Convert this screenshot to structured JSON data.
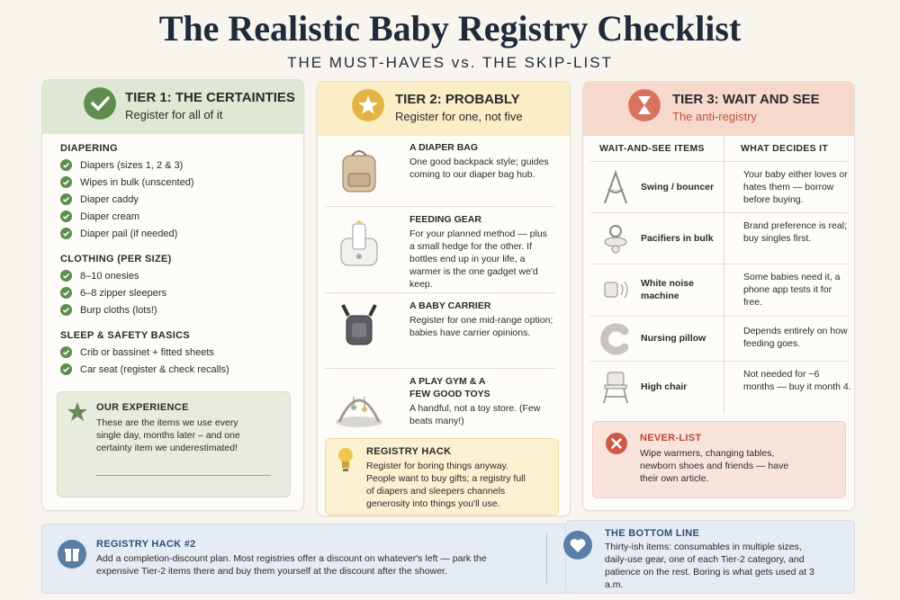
{
  "header": {
    "title": "The Realistic Baby Registry Checklist",
    "subtitle": "THE MUST-HAVES vs. THE SKIP-LIST"
  },
  "tier1": {
    "title": "TIER 1: THE CERTAINTIES",
    "subtitle": "Register for all of it",
    "sections": [
      {
        "heading": "DIAPERING",
        "items": [
          "Diapers (sizes 1, 2 & 3)",
          "Wipes in bulk (unscented)",
          "Diaper caddy",
          "Diaper cream",
          "Diaper pail (if needed)"
        ]
      },
      {
        "heading": "CLOTHING (PER SIZE)",
        "items": [
          "8–10 onesies",
          "6–8 zipper sleepers",
          "Burp cloths (lots!)"
        ]
      },
      {
        "heading": "SLEEP & SAFETY BASICS",
        "items": [
          "Crib or bassinet + fitted sheets",
          "Car seat (register & check recalls)"
        ]
      }
    ],
    "note": {
      "title": "OUR EXPERIENCE",
      "text": "These are the items we use every single day, months later – and one certainty item we underestimated!"
    }
  },
  "tier2": {
    "title": "TIER 2: PROBABLY",
    "subtitle": "Register for one, not five",
    "items": [
      {
        "name": "A DIAPER BAG",
        "text": "One good backpack style; guides coming to our diaper bag hub."
      },
      {
        "name": "FEEDING GEAR",
        "text": "For your planned method — plus a small hedge for the other. If bottles end up in your life, a warmer is the one gadget we'd keep."
      },
      {
        "name": "A BABY CARRIER",
        "text": "Register for one mid-range option; babies have carrier opinions."
      },
      {
        "name": "A PLAY GYM & A FEW GOOD TOYS",
        "text": "A handful, not a toy store. (Few beats many!)"
      }
    ],
    "hack": {
      "title": "REGISTRY HACK",
      "text": "Register for boring things anyway. People want to buy gifts; a registry full of diapers and sleepers channels generosity into things you'll use."
    }
  },
  "tier3": {
    "title": "TIER 3: WAIT AND SEE",
    "subtitle": "The anti-registry",
    "columns": [
      "WAIT-AND-SEE ITEMS",
      "WHAT DECIDES IT"
    ],
    "rows": [
      [
        "Swing / bouncer",
        "Your baby either loves or hates them — borrow before buying."
      ],
      [
        "Pacifiers in bulk",
        "Brand preference is real; buy singles first."
      ],
      [
        "White noise machine",
        "Some babies need it, a phone app tests it for free."
      ],
      [
        "Nursing pillow",
        "Depends entirely on how feeding goes."
      ],
      [
        "High chair",
        "Not needed for ~6 months — buy it month 4."
      ]
    ],
    "never": {
      "title": "NEVER-LIST",
      "text": "Wipe warmers, changing tables, newborn shoes and friends — have their own article."
    }
  },
  "footer": {
    "hack": {
      "title": "REGISTRY HACK #2",
      "text": "Add a completion-discount plan. Most registries offer a discount on whatever's left — park the expensive Tier-2 items there and buy them yourself at the discount after the shower."
    },
    "bottom_line": {
      "title": "THE BOTTOM LINE",
      "text": "Thirty-ish items: consumables in multiple sizes, daily-use gear, one of each Tier-2 category, and patience on the rest. Boring is what gets used at 3 a.m."
    }
  }
}
